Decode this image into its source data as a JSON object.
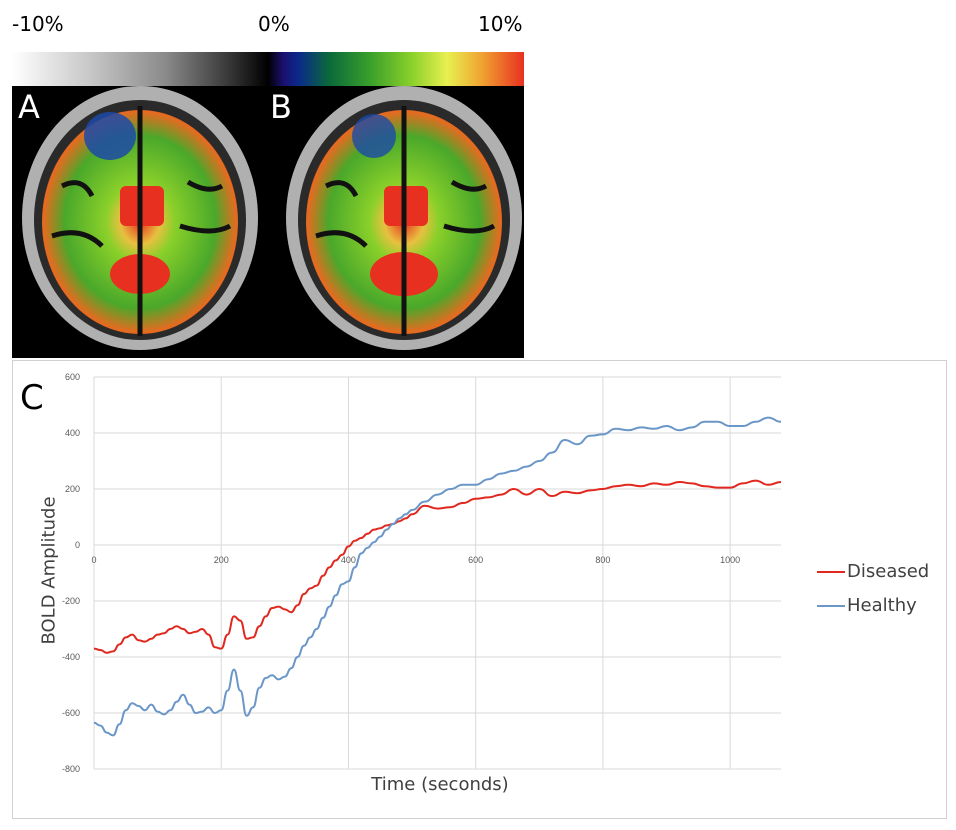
{
  "colorbar": {
    "min_label": "-10%",
    "mid_label": "0%",
    "max_label": "10%"
  },
  "panels": {
    "a": "A",
    "b": "B",
    "c": "C"
  },
  "chart_data": {
    "type": "line",
    "xlabel": "Time (seconds)",
    "ylabel": "BOLD Amplitude",
    "xlim": [
      0,
      1080
    ],
    "ylim": [
      -800,
      600
    ],
    "xticks": [
      0,
      200,
      400,
      600,
      800,
      1000
    ],
    "yticks": [
      600,
      400,
      200,
      0,
      -200,
      -400,
      -600,
      -800
    ],
    "grid": true,
    "legend_position": "right",
    "series": [
      {
        "name": "Diseased",
        "color": "#e0281e",
        "x": [
          0,
          10,
          20,
          30,
          40,
          50,
          60,
          70,
          80,
          90,
          100,
          110,
          120,
          130,
          140,
          150,
          160,
          170,
          180,
          190,
          200,
          210,
          220,
          230,
          240,
          250,
          260,
          270,
          280,
          290,
          300,
          310,
          320,
          330,
          340,
          350,
          360,
          370,
          380,
          390,
          400,
          410,
          420,
          430,
          440,
          450,
          460,
          470,
          480,
          490,
          500,
          520,
          540,
          560,
          580,
          600,
          620,
          640,
          660,
          680,
          700,
          720,
          740,
          760,
          780,
          800,
          820,
          840,
          860,
          880,
          900,
          920,
          940,
          960,
          980,
          1000,
          1020,
          1040,
          1060,
          1080
        ],
        "values": [
          -370,
          -375,
          -385,
          -380,
          -355,
          -330,
          -320,
          -340,
          -345,
          -335,
          -320,
          -315,
          -300,
          -290,
          -300,
          -315,
          -310,
          -300,
          -320,
          -365,
          -370,
          -320,
          -255,
          -270,
          -335,
          -330,
          -290,
          -255,
          -225,
          -220,
          -230,
          -240,
          -215,
          -175,
          -155,
          -145,
          -110,
          -80,
          -55,
          -35,
          -5,
          15,
          25,
          40,
          55,
          60,
          70,
          75,
          85,
          95,
          110,
          140,
          130,
          135,
          150,
          165,
          170,
          180,
          200,
          180,
          200,
          175,
          190,
          185,
          195,
          200,
          210,
          215,
          210,
          220,
          215,
          225,
          220,
          210,
          205,
          205,
          220,
          230,
          215,
          225
        ]
      },
      {
        "name": "Healthy",
        "color": "#6a96c8",
        "x": [
          0,
          10,
          20,
          30,
          40,
          50,
          60,
          70,
          80,
          90,
          100,
          110,
          120,
          130,
          140,
          150,
          160,
          170,
          180,
          190,
          200,
          210,
          220,
          230,
          240,
          250,
          260,
          270,
          280,
          290,
          300,
          310,
          320,
          330,
          340,
          350,
          360,
          370,
          380,
          390,
          400,
          410,
          420,
          430,
          440,
          450,
          460,
          470,
          480,
          490,
          500,
          520,
          540,
          560,
          580,
          600,
          620,
          640,
          660,
          680,
          700,
          720,
          740,
          760,
          780,
          800,
          820,
          840,
          860,
          880,
          900,
          920,
          940,
          960,
          980,
          1000,
          1020,
          1040,
          1060,
          1080
        ],
        "values": [
          -635,
          -645,
          -670,
          -680,
          -640,
          -590,
          -565,
          -575,
          -590,
          -570,
          -595,
          -605,
          -590,
          -560,
          -535,
          -570,
          -600,
          -595,
          -580,
          -600,
          -590,
          -520,
          -445,
          -520,
          -610,
          -580,
          -510,
          -475,
          -465,
          -480,
          -470,
          -440,
          -400,
          -360,
          -330,
          -300,
          -260,
          -220,
          -180,
          -140,
          -130,
          -80,
          -30,
          -10,
          10,
          30,
          55,
          75,
          95,
          110,
          125,
          155,
          180,
          200,
          215,
          215,
          235,
          255,
          265,
          280,
          300,
          330,
          375,
          360,
          390,
          395,
          415,
          410,
          420,
          415,
          425,
          410,
          420,
          440,
          440,
          425,
          425,
          440,
          455,
          440
        ]
      }
    ]
  }
}
